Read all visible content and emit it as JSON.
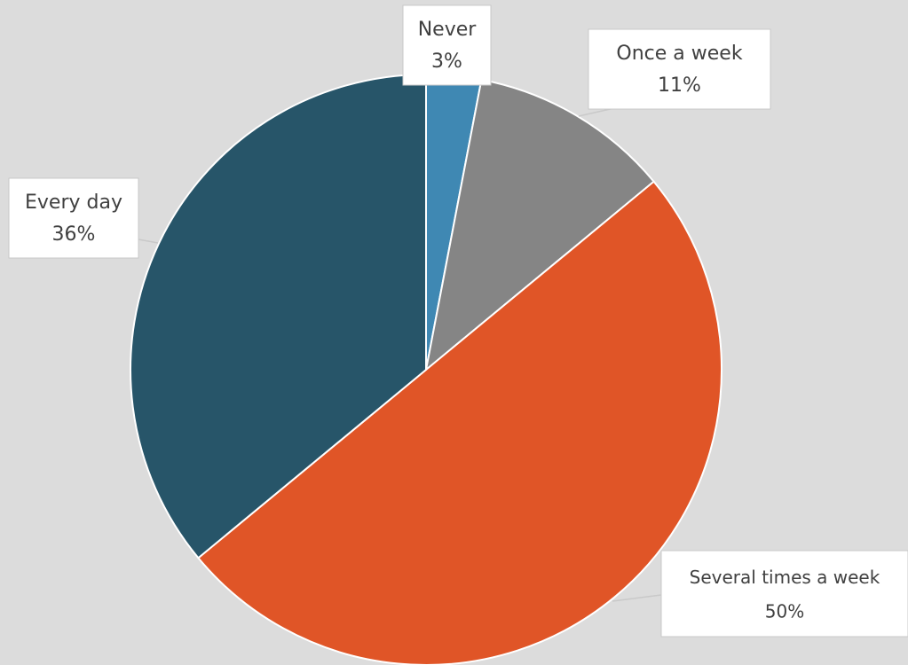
{
  "chart_data": {
    "type": "pie",
    "slices": [
      {
        "label": "Never",
        "value": 3,
        "display": "3%",
        "color": "#3f88b3"
      },
      {
        "label": "Once a week",
        "value": 11,
        "display": "11%",
        "color": "#858585"
      },
      {
        "label": "Several times a week",
        "value": 50,
        "display": "50%",
        "color": "#e05527"
      },
      {
        "label": "Every day",
        "value": 36,
        "display": "36%",
        "color": "#275569"
      }
    ],
    "start": "12 o'clock",
    "direction": "clockwise",
    "legend": "none",
    "data_labels": "category and percentage in callout boxes"
  }
}
